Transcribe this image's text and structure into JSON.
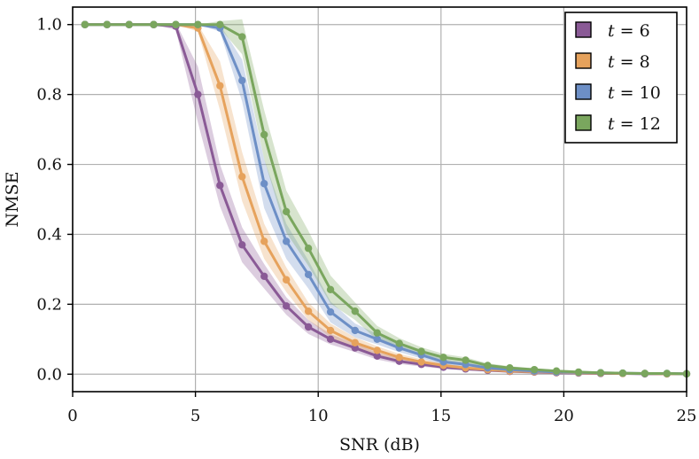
{
  "chart_data": {
    "type": "line",
    "xlabel": "SNR (dB)",
    "ylabel": "NMSE",
    "xlim": [
      0,
      25
    ],
    "ylim": [
      -0.05,
      1.05
    ],
    "xticks": [
      0,
      5,
      10,
      15,
      20,
      25
    ],
    "yticks": [
      0.0,
      0.2,
      0.4,
      0.6,
      0.8,
      1.0
    ],
    "ytick_labels": [
      "0.0",
      "0.2",
      "0.4",
      "0.6",
      "0.8",
      "1.0"
    ],
    "grid": true,
    "legend_position": "top-right",
    "x": [
      0.5,
      1.4,
      2.3,
      3.3,
      4.2,
      5.1,
      6.0,
      6.9,
      7.8,
      8.7,
      9.6,
      10.5,
      11.5,
      12.4,
      13.3,
      14.2,
      15.1,
      16.0,
      16.9,
      17.8,
      18.8,
      19.7,
      20.6,
      21.5,
      22.4,
      23.3,
      24.2,
      25.0
    ],
    "series": [
      {
        "name": "t = 6",
        "label_var": "t",
        "label_value": "6",
        "color": "#8a5a96",
        "values": [
          1.0,
          1.0,
          1.0,
          1.0,
          0.995,
          0.8,
          0.54,
          0.37,
          0.28,
          0.195,
          0.135,
          0.1,
          0.075,
          0.052,
          0.037,
          0.028,
          0.02,
          0.015,
          0.011,
          0.008,
          0.006,
          0.004,
          0.003,
          0.002,
          0.002,
          0.001,
          0.001,
          0.001
        ],
        "band_halfwidth": [
          0,
          0,
          0,
          0,
          0.01,
          0.08,
          0.06,
          0.05,
          0.035,
          0.025,
          0.02,
          0.015,
          0.012,
          0.01,
          0.008,
          0.006,
          0.005,
          0.004,
          0.003,
          0.002,
          0.002,
          0.002,
          0.001,
          0.001,
          0.001,
          0.001,
          0.001,
          0.001
        ]
      },
      {
        "name": "t = 8",
        "label_var": "t",
        "label_value": "8",
        "color": "#e6a25c",
        "values": [
          1.0,
          1.0,
          1.0,
          1.0,
          1.0,
          0.99,
          0.825,
          0.565,
          0.38,
          0.27,
          0.18,
          0.125,
          0.09,
          0.068,
          0.048,
          0.035,
          0.025,
          0.018,
          0.013,
          0.009,
          0.007,
          0.005,
          0.004,
          0.003,
          0.002,
          0.002,
          0.001,
          0.001
        ],
        "band_halfwidth": [
          0,
          0,
          0,
          0,
          0,
          0.01,
          0.07,
          0.07,
          0.05,
          0.035,
          0.025,
          0.02,
          0.015,
          0.012,
          0.01,
          0.008,
          0.006,
          0.005,
          0.004,
          0.003,
          0.002,
          0.002,
          0.002,
          0.001,
          0.001,
          0.001,
          0.001,
          0.001
        ]
      },
      {
        "name": "t = 10",
        "label_var": "t",
        "label_value": "10",
        "color": "#6d8fc6",
        "values": [
          1.0,
          1.0,
          1.0,
          1.0,
          1.0,
          1.0,
          0.99,
          0.84,
          0.545,
          0.38,
          0.285,
          0.178,
          0.125,
          0.1,
          0.075,
          0.055,
          0.035,
          0.028,
          0.018,
          0.013,
          0.009,
          0.006,
          0.005,
          0.004,
          0.003,
          0.002,
          0.002,
          0.001
        ],
        "band_halfwidth": [
          0,
          0,
          0,
          0,
          0,
          0,
          0.01,
          0.06,
          0.07,
          0.05,
          0.04,
          0.03,
          0.02,
          0.015,
          0.012,
          0.01,
          0.008,
          0.006,
          0.005,
          0.004,
          0.003,
          0.002,
          0.002,
          0.002,
          0.001,
          0.001,
          0.001,
          0.001
        ]
      },
      {
        "name": "t = 12",
        "label_var": "t",
        "label_value": "12",
        "color": "#7aa65e",
        "values": [
          1.0,
          1.0,
          1.0,
          1.0,
          1.0,
          1.0,
          1.0,
          0.965,
          0.685,
          0.465,
          0.36,
          0.242,
          0.18,
          0.118,
          0.088,
          0.065,
          0.048,
          0.04,
          0.025,
          0.018,
          0.013,
          0.009,
          0.006,
          0.004,
          0.003,
          0.002,
          0.002,
          0.001
        ],
        "band_halfwidth": [
          0,
          0,
          0,
          0,
          0,
          0,
          0.01,
          0.05,
          0.07,
          0.06,
          0.05,
          0.04,
          0.025,
          0.02,
          0.015,
          0.012,
          0.01,
          0.008,
          0.006,
          0.005,
          0.004,
          0.003,
          0.002,
          0.002,
          0.002,
          0.001,
          0.001,
          0.001
        ]
      }
    ]
  }
}
